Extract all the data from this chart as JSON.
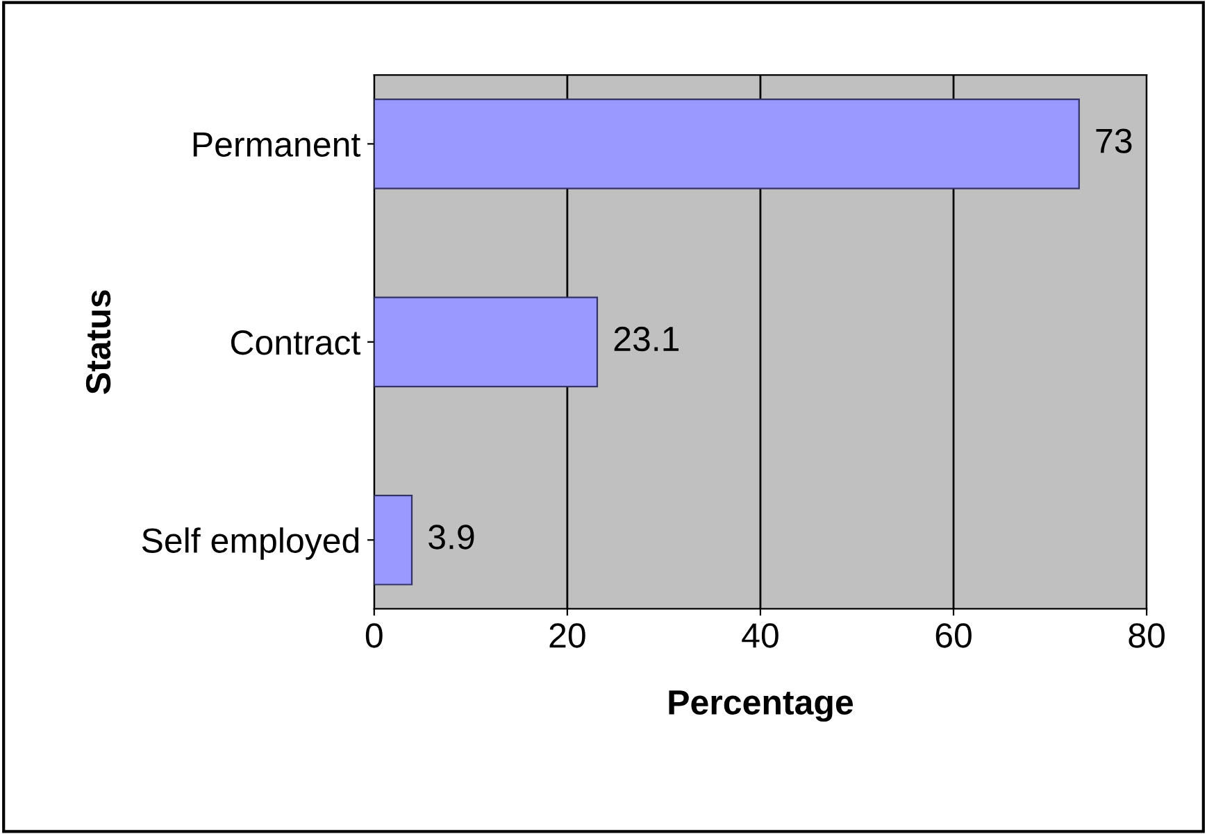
{
  "chart_data": {
    "type": "bar",
    "orientation": "horizontal",
    "xlabel": "Percentage",
    "ylabel": "Status",
    "categories": [
      "Permanent",
      "Contract",
      "Self employed"
    ],
    "values": [
      73,
      23.1,
      3.9
    ],
    "color": "#9999ff",
    "xlim": [
      0,
      80
    ],
    "xticks": [
      0,
      20,
      40,
      60,
      80
    ],
    "grid": "x",
    "data_labels": true
  }
}
